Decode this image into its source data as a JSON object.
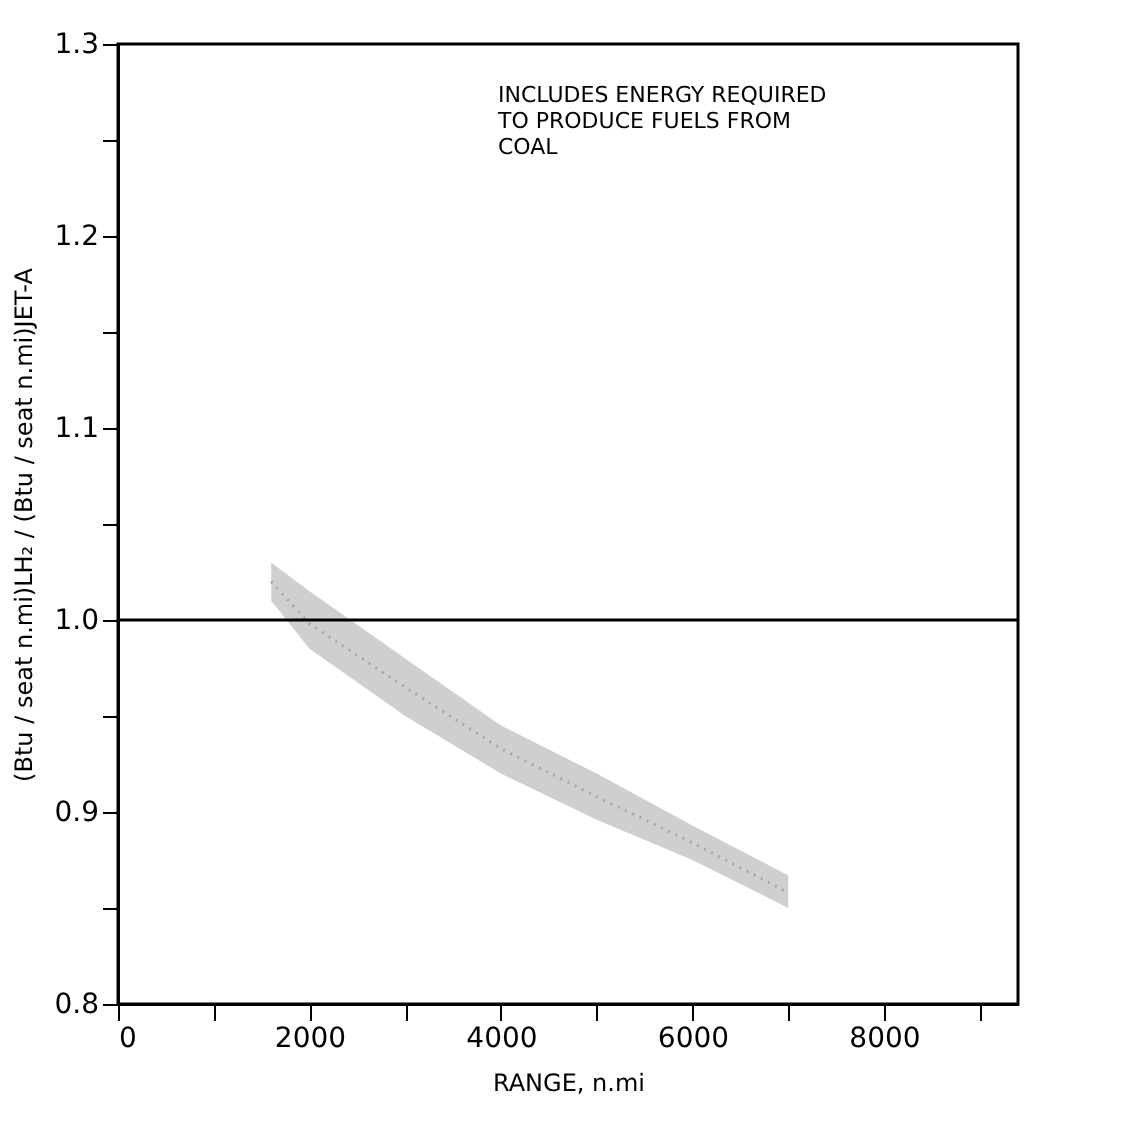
{
  "chart_data": {
    "type": "line",
    "xlabel": "RANGE, n.mi",
    "ylabel": "(Btu / seat n.mi)LH₂ / (Btu / seat n.mi)JET-A",
    "annotations": [
      "INCLUDES ENERGY REQUIRED\nTO PRODUCE FUELS FROM\nCOAL"
    ],
    "series": [
      {
        "color": "#a8a8a8",
        "line_style": "dotted",
        "x": [
          1600,
          2000,
          3000,
          4000,
          5000,
          6000,
          7000
        ],
        "values": [
          1.02,
          0.998,
          0.965,
          0.933,
          0.908,
          0.884,
          0.858
        ],
        "lower": [
          1.01,
          0.985,
          0.95,
          0.92,
          0.896,
          0.875,
          0.85
        ],
        "upper": [
          1.03,
          1.015,
          0.98,
          0.945,
          0.92,
          0.893,
          0.867
        ]
      }
    ],
    "ref_lines": [
      {
        "axis": "y",
        "value": 1.0,
        "color": "#000000",
        "line_style": "solid"
      }
    ],
    "xlim": [
      0,
      9400
    ],
    "xticks": [
      0,
      {
        "value": 1000,
        "label": null
      },
      2000,
      {
        "value": 3000,
        "label": null
      },
      4000,
      {
        "value": 5000,
        "label": null
      },
      6000,
      {
        "value": 7000,
        "label": null
      },
      8000,
      {
        "value": 9000,
        "label": null
      }
    ],
    "ylim": [
      0.8,
      1.3
    ],
    "yticks": [
      {
        "value": 0.8,
        "label": "0.8"
      },
      {
        "value": 0.85,
        "label": null
      },
      {
        "value": 0.9,
        "label": "0.9"
      },
      {
        "value": 0.95,
        "label": null
      },
      {
        "value": 1.0,
        "label": "1.0"
      },
      {
        "value": 1.05,
        "label": null
      },
      {
        "value": 1.1,
        "label": "1.1"
      },
      {
        "value": 1.15,
        "label": null
      },
      {
        "value": 1.2,
        "label": "1.2"
      },
      {
        "value": 1.25,
        "label": null
      },
      {
        "value": 1.3,
        "label": "1.3"
      }
    ],
    "grid": false,
    "marker": "none"
  }
}
